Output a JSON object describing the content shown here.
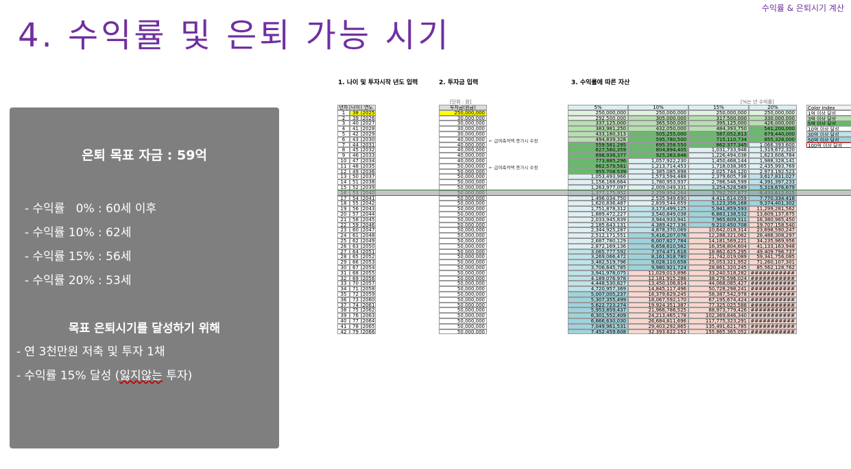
{
  "slide": {
    "top_right": "수익률 & 은퇴시기 계산",
    "title": "4. 수익률 및 은퇴 가능 시기",
    "goal": "은퇴 목표 자금 : 59억",
    "rates": [
      "- 수익률   0% : 60세 이후",
      "- 수익률 10% : 62세",
      "- 수익률 15% : 56세",
      "- 수익률 20% : 53세"
    ],
    "target_title": "목표 은퇴시기를 달성하기 위해",
    "target_line1": "- 연 3천만원 저축 및 투자 1채",
    "target_line2_prefix": "- 수익률 15% 달성 (",
    "target_line2_underlined": "잃지않는",
    "target_line2_suffix": " 투자)"
  },
  "sheet": {
    "section1": "1. 나이 및 투자시작 년도 입력",
    "section2": "2. 투자금 입력",
    "section3": "3. 수익률에 따른 자산",
    "unit_won": "[단위 : 원]",
    "unit_rate": "[%는 년 수익률]",
    "headers": [
      "년차",
      "나이",
      "연도",
      "투자금(원금)",
      "5%",
      "10%",
      "15%",
      "20%"
    ],
    "note_salary": "← 급여축적액 증가시 수정",
    "color_index": {
      "title": "Color Index",
      "items": [
        "1억 이상 달성",
        "3억 이상 달성",
        "5억 이상 달성",
        "10억 이상 달성",
        "30억 이상 달성",
        "50억 이상 달성",
        "100억 이상 달성"
      ],
      "colors": [
        "#ffffff",
        "#b7dfb0",
        "#66bb6a",
        "#ffffff",
        "#bfe3ea",
        "#9fd3dc",
        "#ffffff"
      ],
      "border_colors": [
        "#999",
        "#999",
        "#999",
        "#999",
        "#999",
        "#999",
        "#c00000"
      ]
    },
    "rows": [
      [
        "1",
        "38",
        "2025",
        "250,000,000",
        "250,000,000",
        "250,000,000",
        "250,000,000",
        "250,000,000"
      ],
      [
        "2",
        "39",
        "2026",
        "30,000,000",
        "292,500,000",
        "305,000,000",
        "317,500,000",
        "330,000,000"
      ],
      [
        "3",
        "40",
        "2027",
        "30,000,000",
        "337,125,000",
        "365,500,000",
        "395,125,000",
        "426,000,000"
      ],
      [
        "4",
        "41",
        "2028",
        "30,000,000",
        "383,981,250",
        "432,050,000",
        "484,393,750",
        "541,200,000"
      ],
      [
        "5",
        "42",
        "2029",
        "30,000,000",
        "433,180,313",
        "505,255,000",
        "587,052,813",
        "679,440,000"
      ],
      [
        "6",
        "43",
        "2030",
        "40,000,000",
        "494,839,328",
        "595,780,500",
        "715,110,734",
        "855,328,000"
      ],
      [
        "7",
        "44",
        "2031",
        "40,000,000",
        "559,581,295",
        "695,358,550",
        "862,377,345",
        "1,066,393,600"
      ],
      [
        "8",
        "45",
        "2032",
        "40,000,000",
        "627,560,359",
        "804,894,405",
        "1,031,733,946",
        "1,319,672,320"
      ],
      [
        "9",
        "46",
        "2033",
        "40,000,000",
        "698,938,377",
        "925,383,846",
        "1,226,494,038",
        "1,623,606,784"
      ],
      [
        "10",
        "47",
        "2034",
        "40,000,000",
        "773,885,296",
        "1,057,922,230",
        "1,450,468,144",
        "1,988,328,141"
      ],
      [
        "11",
        "48",
        "2035",
        "50,000,000",
        "862,579,561",
        "1,213,714,453",
        "1,718,038,365",
        "2,435,993,769"
      ],
      [
        "12",
        "49",
        "2036",
        "50,000,000",
        "955,708,539",
        "1,385,085,898",
        "2,025,744,120",
        "2,973,192,523"
      ],
      [
        "13",
        "50",
        "2037",
        "50,000,000",
        "1,053,493,966",
        "1,573,594,488",
        "2,379,605,738",
        "3,617,831,027"
      ],
      [
        "14",
        "51",
        "2038",
        "50,000,000",
        "1,156,168,664",
        "1,780,953,937",
        "2,786,546,599",
        "4,391,397,233"
      ],
      [
        "15",
        "52",
        "2039",
        "50,000,000",
        "1,263,977,097",
        "2,009,049,331",
        "3,254,528,589",
        "5,319,676,679"
      ],
      [
        "16",
        "53",
        "2040",
        "50,000,000",
        "1,377,175,952",
        "2,259,954,264",
        "3,792,707,877",
        "6,433,612,015"
      ],
      [
        "17",
        "54",
        "2041",
        "50,000,000",
        "1,496,034,750",
        "2,535,949,690",
        "4,411,614,059",
        "7,770,334,418"
      ],
      [
        "18",
        "55",
        "2042",
        "50,000,000",
        "1,620,836,487",
        "2,839,544,659",
        "5,123,356,168",
        "9,374,401,302"
      ],
      [
        "19",
        "56",
        "2043",
        "50,000,000",
        "1,751,878,312",
        "3,173,499,125",
        "5,941,859,593",
        "11,299,281,562"
      ],
      [
        "20",
        "57",
        "2044",
        "50,000,000",
        "1,889,472,227",
        "3,540,849,038",
        "6,883,138,532",
        "13,609,137,875"
      ],
      [
        "21",
        "58",
        "2045",
        "50,000,000",
        "2,033,945,839",
        "3,944,933,941",
        "7,965,609,311",
        "16,380,965,450"
      ],
      [
        "22",
        "59",
        "2046",
        "50,000,000",
        "2,185,643,131",
        "4,389,427,336",
        "9,210,450,708",
        "19,707,158,540"
      ],
      [
        "23",
        "60",
        "2047",
        "50,000,000",
        "2,344,925,287",
        "4,878,370,069",
        "10,642,018,314",
        "23,698,590,247"
      ],
      [
        "24",
        "61",
        "2048",
        "50,000,000",
        "2,512,171,551",
        "5,416,207,076",
        "12,288,321,062",
        "28,488,308,297"
      ],
      [
        "25",
        "62",
        "2049",
        "50,000,000",
        "2,687,780,129",
        "6,007,827,784",
        "14,181,569,221",
        "34,235,969,956"
      ],
      [
        "26",
        "63",
        "2050",
        "50,000,000",
        "2,872,169,136",
        "6,658,610,562",
        "16,358,804,604",
        "41,133,163,948"
      ],
      [
        "27",
        "64",
        "2051",
        "50,000,000",
        "3,065,777,592",
        "7,374,471,618",
        "18,862,625,295",
        "49,409,796,737"
      ],
      [
        "28",
        "65",
        "2052",
        "50,000,000",
        "3,269,066,472",
        "8,161,918,780",
        "21,742,019,089",
        "59,341,756,085"
      ],
      [
        "29",
        "66",
        "2053",
        "50,000,000",
        "3,482,519,796",
        "9,028,110,658",
        "25,053,321,952",
        "71,260,107,301"
      ],
      [
        "30",
        "67",
        "2054",
        "50,000,000",
        "3,706,645,785",
        "9,980,921,724",
        "28,861,320,245",
        "85,562,128,762"
      ],
      [
        "31",
        "68",
        "2055",
        "50,000,000",
        "3,941,978,075",
        "11,029,013,896",
        "33,240,518,282",
        "###########"
      ],
      [
        "32",
        "69",
        "2056",
        "50,000,000",
        "4,189,076,978",
        "12,181,915,286",
        "38,276,596,024",
        "###########"
      ],
      [
        "33",
        "70",
        "2057",
        "50,000,000",
        "4,448,530,827",
        "13,450,106,814",
        "44,068,085,427",
        "###########"
      ],
      [
        "34",
        "71",
        "2058",
        "50,000,000",
        "4,720,957,369",
        "14,845,117,496",
        "50,728,298,241",
        "###########"
      ],
      [
        "35",
        "72",
        "2059",
        "50,000,000",
        "5,007,005,237",
        "16,379,629,245",
        "58,387,542,978",
        "###########"
      ],
      [
        "36",
        "73",
        "2060",
        "50,000,000",
        "5,307,355,499",
        "18,067,592,170",
        "67,195,674,424",
        "###########"
      ],
      [
        "37",
        "74",
        "2061",
        "50,000,000",
        "5,622,723,274",
        "19,924,351,387",
        "77,325,025,588",
        "###########"
      ],
      [
        "38",
        "75",
        "2062",
        "50,000,000",
        "5,953,859,437",
        "21,966,786,525",
        "88,973,779,426",
        "###########"
      ],
      [
        "39",
        "76",
        "2063",
        "50,000,000",
        "6,301,552,409",
        "24,213,465,178",
        "102,369,846,340",
        "###########"
      ],
      [
        "40",
        "77",
        "2064",
        "50,000,000",
        "6,666,630,030",
        "26,684,811,696",
        "117,775,323,291",
        "###########"
      ],
      [
        "41",
        "78",
        "2065",
        "50,000,000",
        "7,049,961,531",
        "29,403,292,865",
        "135,491,621,785",
        "###########"
      ],
      [
        "42",
        "79",
        "2066",
        "50,000,000",
        "7,452,459,608",
        "32,393,622,152",
        "155,865,365,052",
        "###########"
      ]
    ]
  }
}
